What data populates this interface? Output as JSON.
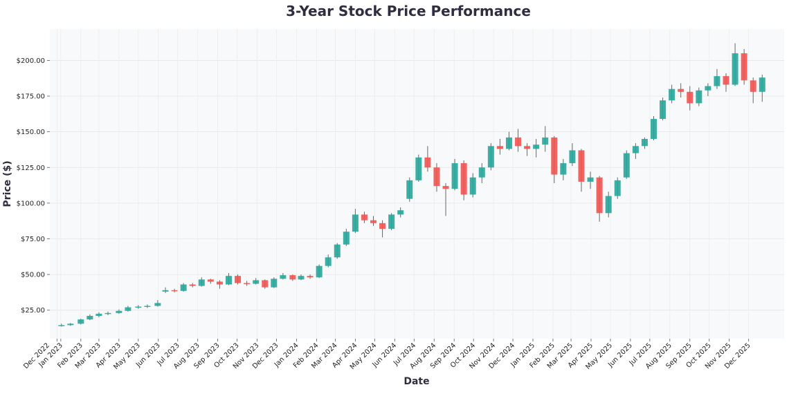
{
  "chart_data": {
    "type": "candlestick",
    "title": "3-Year Stock Price Performance",
    "xlabel": "Date",
    "ylabel": "Price ($)",
    "ylim": [
      5,
      222
    ],
    "xlim": [
      "2022-12-15",
      "2026-01-25"
    ],
    "grid": true,
    "colors": {
      "up": "#26a69a",
      "down": "#ef5350",
      "background": "#f8f9fa",
      "title": "#2e2e40"
    },
    "yticks": [
      {
        "value": 25,
        "label": "$25.00"
      },
      {
        "value": 50,
        "label": "$50.00"
      },
      {
        "value": 75,
        "label": "$75.00"
      },
      {
        "value": 100,
        "label": "$100.00"
      },
      {
        "value": 125,
        "label": "$125.00"
      },
      {
        "value": 150,
        "label": "$150.00"
      },
      {
        "value": 175,
        "label": "$175.00"
      },
      {
        "value": 200,
        "label": "$200.00"
      }
    ],
    "xticks": [
      {
        "date": "2022-12-26",
        "label": "Dec 2022"
      },
      {
        "date": "2023-01-01",
        "label": "Jan 2023"
      },
      {
        "date": "2023-02-01",
        "label": "Feb 2023"
      },
      {
        "date": "2023-03-01",
        "label": "Mar 2023"
      },
      {
        "date": "2023-04-01",
        "label": "Apr 2023"
      },
      {
        "date": "2023-05-01",
        "label": "May 2023"
      },
      {
        "date": "2023-06-01",
        "label": "Jun 2023"
      },
      {
        "date": "2023-07-01",
        "label": "Jul 2023"
      },
      {
        "date": "2023-08-01",
        "label": "Aug 2023"
      },
      {
        "date": "2023-09-01",
        "label": "Sep 2023"
      },
      {
        "date": "2023-10-01",
        "label": "Oct 2023"
      },
      {
        "date": "2023-11-01",
        "label": "Nov 2023"
      },
      {
        "date": "2023-12-01",
        "label": "Dec 2023"
      },
      {
        "date": "2024-01-01",
        "label": "Jan 2024"
      },
      {
        "date": "2024-02-01",
        "label": "Feb 2024"
      },
      {
        "date": "2024-03-01",
        "label": "Mar 2024"
      },
      {
        "date": "2024-04-01",
        "label": "Apr 2024"
      },
      {
        "date": "2024-05-01",
        "label": "May 2024"
      },
      {
        "date": "2024-06-01",
        "label": "Jun 2024"
      },
      {
        "date": "2024-07-01",
        "label": "Jul 2024"
      },
      {
        "date": "2024-08-01",
        "label": "Aug 2024"
      },
      {
        "date": "2024-09-01",
        "label": "Sep 2024"
      },
      {
        "date": "2024-10-01",
        "label": "Oct 2024"
      },
      {
        "date": "2024-11-01",
        "label": "Nov 2024"
      },
      {
        "date": "2024-12-01",
        "label": "Dec 2024"
      },
      {
        "date": "2025-01-01",
        "label": "Jan 2025"
      },
      {
        "date": "2025-02-01",
        "label": "Feb 2025"
      },
      {
        "date": "2025-03-01",
        "label": "Mar 2025"
      },
      {
        "date": "2025-04-01",
        "label": "Apr 2025"
      },
      {
        "date": "2025-05-01",
        "label": "May 2025"
      },
      {
        "date": "2025-06-01",
        "label": "Jun 2025"
      },
      {
        "date": "2025-07-01",
        "label": "Jul 2025"
      },
      {
        "date": "2025-08-01",
        "label": "Aug 2025"
      },
      {
        "date": "2025-09-01",
        "label": "Sep 2025"
      },
      {
        "date": "2025-10-01",
        "label": "Oct 2025"
      },
      {
        "date": "2025-11-01",
        "label": "Nov 2025"
      },
      {
        "date": "2025-12-01",
        "label": "Dec 2025"
      }
    ],
    "candles": [
      {
        "date": "2023-01-02",
        "open": 14,
        "high": 15.5,
        "low": 13.5,
        "close": 14.5
      },
      {
        "date": "2023-01-16",
        "open": 14.5,
        "high": 16,
        "low": 14,
        "close": 15.5
      },
      {
        "date": "2023-02-01",
        "open": 15.5,
        "high": 19,
        "low": 15,
        "close": 18.5
      },
      {
        "date": "2023-02-15",
        "open": 18.5,
        "high": 22,
        "low": 18,
        "close": 21
      },
      {
        "date": "2023-03-01",
        "open": 21,
        "high": 23.5,
        "low": 20,
        "close": 22.5
      },
      {
        "date": "2023-03-15",
        "open": 22.5,
        "high": 24,
        "low": 21.5,
        "close": 23
      },
      {
        "date": "2023-04-01",
        "open": 23,
        "high": 25.5,
        "low": 22.5,
        "close": 24.5
      },
      {
        "date": "2023-04-15",
        "open": 24.5,
        "high": 28,
        "low": 24,
        "close": 27
      },
      {
        "date": "2023-05-01",
        "open": 27,
        "high": 28.5,
        "low": 26,
        "close": 27.5
      },
      {
        "date": "2023-05-15",
        "open": 27.5,
        "high": 29,
        "low": 26.5,
        "close": 28
      },
      {
        "date": "2023-05-31",
        "open": 28,
        "high": 32,
        "low": 27.5,
        "close": 30
      },
      {
        "date": "2023-06-12",
        "open": 38,
        "high": 41,
        "low": 37,
        "close": 39
      },
      {
        "date": "2023-06-26",
        "open": 39,
        "high": 40,
        "low": 37.5,
        "close": 38.5
      },
      {
        "date": "2023-07-10",
        "open": 38.5,
        "high": 44,
        "low": 38,
        "close": 43
      },
      {
        "date": "2023-07-24",
        "open": 43,
        "high": 44,
        "low": 41,
        "close": 42
      },
      {
        "date": "2023-08-07",
        "open": 42,
        "high": 48,
        "low": 41.5,
        "close": 46.5
      },
      {
        "date": "2023-08-21",
        "open": 46.5,
        "high": 47,
        "low": 43.5,
        "close": 45
      },
      {
        "date": "2023-09-04",
        "open": 45,
        "high": 46,
        "low": 40,
        "close": 43
      },
      {
        "date": "2023-09-18",
        "open": 43,
        "high": 51,
        "low": 42.5,
        "close": 49
      },
      {
        "date": "2023-10-02",
        "open": 49,
        "high": 50,
        "low": 43,
        "close": 44
      },
      {
        "date": "2023-10-16",
        "open": 44,
        "high": 45.5,
        "low": 42,
        "close": 43.5
      },
      {
        "date": "2023-10-30",
        "open": 43.5,
        "high": 47.5,
        "low": 43,
        "close": 46
      },
      {
        "date": "2023-11-13",
        "open": 46,
        "high": 46.5,
        "low": 40,
        "close": 41
      },
      {
        "date": "2023-11-27",
        "open": 41,
        "high": 48,
        "low": 40.5,
        "close": 47
      },
      {
        "date": "2023-12-11",
        "open": 47,
        "high": 51,
        "low": 46.5,
        "close": 49.5
      },
      {
        "date": "2023-12-26",
        "open": 49.5,
        "high": 50,
        "low": 45.5,
        "close": 46.5
      },
      {
        "date": "2024-01-08",
        "open": 46.5,
        "high": 50,
        "low": 46,
        "close": 49
      },
      {
        "date": "2024-01-22",
        "open": 49,
        "high": 50,
        "low": 47,
        "close": 48
      },
      {
        "date": "2024-02-05",
        "open": 48,
        "high": 57,
        "low": 47.5,
        "close": 56
      },
      {
        "date": "2024-02-19",
        "open": 56,
        "high": 64,
        "low": 55,
        "close": 62
      },
      {
        "date": "2024-03-04",
        "open": 62,
        "high": 72,
        "low": 61,
        "close": 71
      },
      {
        "date": "2024-03-18",
        "open": 71,
        "high": 82,
        "low": 70,
        "close": 80
      },
      {
        "date": "2024-04-01",
        "open": 80,
        "high": 96,
        "low": 79,
        "close": 92
      },
      {
        "date": "2024-04-15",
        "open": 92,
        "high": 94,
        "low": 86,
        "close": 88
      },
      {
        "date": "2024-04-29",
        "open": 88,
        "high": 91,
        "low": 84,
        "close": 86
      },
      {
        "date": "2024-05-13",
        "open": 86,
        "high": 88,
        "low": 76,
        "close": 82
      },
      {
        "date": "2024-05-27",
        "open": 82,
        "high": 93,
        "low": 81,
        "close": 92
      },
      {
        "date": "2024-06-10",
        "open": 92,
        "high": 97,
        "low": 90,
        "close": 95
      },
      {
        "date": "2024-06-24",
        "open": 103,
        "high": 118,
        "low": 101,
        "close": 116
      },
      {
        "date": "2024-07-08",
        "open": 116,
        "high": 134,
        "low": 115,
        "close": 132
      },
      {
        "date": "2024-07-22",
        "open": 132,
        "high": 140,
        "low": 122,
        "close": 125
      },
      {
        "date": "2024-08-05",
        "open": 125,
        "high": 128,
        "low": 108,
        "close": 112
      },
      {
        "date": "2024-08-19",
        "open": 112,
        "high": 114,
        "low": 91,
        "close": 110
      },
      {
        "date": "2024-09-02",
        "open": 110,
        "high": 131,
        "low": 109,
        "close": 128
      },
      {
        "date": "2024-09-16",
        "open": 128,
        "high": 130,
        "low": 102,
        "close": 106
      },
      {
        "date": "2024-09-30",
        "open": 106,
        "high": 121,
        "low": 104,
        "close": 118
      },
      {
        "date": "2024-10-14",
        "open": 118,
        "high": 128,
        "low": 114,
        "close": 125
      },
      {
        "date": "2024-10-28",
        "open": 125,
        "high": 142,
        "low": 123,
        "close": 140
      },
      {
        "date": "2024-11-11",
        "open": 140,
        "high": 145,
        "low": 134,
        "close": 138
      },
      {
        "date": "2024-11-25",
        "open": 138,
        "high": 150,
        "low": 137,
        "close": 146
      },
      {
        "date": "2024-12-09",
        "open": 146,
        "high": 152,
        "low": 136,
        "close": 140
      },
      {
        "date": "2024-12-23",
        "open": 140,
        "high": 142,
        "low": 133,
        "close": 138
      },
      {
        "date": "2025-01-06",
        "open": 138,
        "high": 145,
        "low": 132,
        "close": 141
      },
      {
        "date": "2025-01-20",
        "open": 141,
        "high": 154,
        "low": 136,
        "close": 146
      },
      {
        "date": "2025-02-03",
        "open": 146,
        "high": 147,
        "low": 114,
        "close": 120
      },
      {
        "date": "2025-02-17",
        "open": 120,
        "high": 131,
        "low": 116,
        "close": 128
      },
      {
        "date": "2025-03-03",
        "open": 128,
        "high": 142,
        "low": 126,
        "close": 137
      },
      {
        "date": "2025-03-17",
        "open": 137,
        "high": 138,
        "low": 108,
        "close": 115
      },
      {
        "date": "2025-03-31",
        "open": 115,
        "high": 122,
        "low": 110,
        "close": 118
      },
      {
        "date": "2025-04-14",
        "open": 118,
        "high": 119,
        "low": 87,
        "close": 93
      },
      {
        "date": "2025-04-28",
        "open": 93,
        "high": 108,
        "low": 90,
        "close": 105
      },
      {
        "date": "2025-05-12",
        "open": 105,
        "high": 118,
        "low": 103,
        "close": 116
      },
      {
        "date": "2025-05-26",
        "open": 118,
        "high": 137,
        "low": 117,
        "close": 135
      },
      {
        "date": "2025-06-09",
        "open": 135,
        "high": 142,
        "low": 131,
        "close": 140
      },
      {
        "date": "2025-06-23",
        "open": 140,
        "high": 146,
        "low": 138,
        "close": 145
      },
      {
        "date": "2025-07-07",
        "open": 145,
        "high": 161,
        "low": 144,
        "close": 159
      },
      {
        "date": "2025-07-21",
        "open": 159,
        "high": 174,
        "low": 158,
        "close": 172
      },
      {
        "date": "2025-08-04",
        "open": 172,
        "high": 183,
        "low": 170,
        "close": 180
      },
      {
        "date": "2025-08-18",
        "open": 180,
        "high": 184,
        "low": 174,
        "close": 178
      },
      {
        "date": "2025-09-01",
        "open": 178,
        "high": 182,
        "low": 165,
        "close": 170
      },
      {
        "date": "2025-09-15",
        "open": 170,
        "high": 181,
        "low": 168,
        "close": 179
      },
      {
        "date": "2025-09-29",
        "open": 179,
        "high": 184,
        "low": 175,
        "close": 182
      },
      {
        "date": "2025-10-13",
        "open": 182,
        "high": 194,
        "low": 180,
        "close": 189
      },
      {
        "date": "2025-10-27",
        "open": 189,
        "high": 191,
        "low": 178,
        "close": 183
      },
      {
        "date": "2025-11-10",
        "open": 183,
        "high": 212,
        "low": 182,
        "close": 205
      },
      {
        "date": "2025-11-24",
        "open": 205,
        "high": 208,
        "low": 183,
        "close": 186
      },
      {
        "date": "2025-12-08",
        "open": 186,
        "high": 188,
        "low": 170,
        "close": 178
      },
      {
        "date": "2025-12-22",
        "open": 178,
        "high": 190,
        "low": 171,
        "close": 188
      }
    ]
  }
}
